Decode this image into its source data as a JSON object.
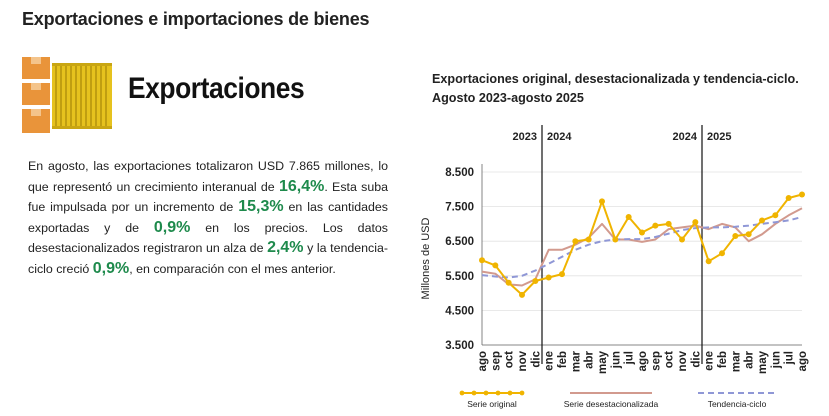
{
  "section_title": "Exportaciones e importaciones de bienes",
  "heading": "Exportaciones",
  "paragraph": {
    "p1": "En agosto, las exportaciones totalizaron USD 7.865 millones, lo que representó un crecimiento interanual de ",
    "h1": "16,4%",
    "p2": ". Esta suba fue impulsada por un incremento de ",
    "h2": "15,3%",
    "p3": " en las cantidades exportadas y de ",
    "h3": "0,9%",
    "p4": " en los precios. Los datos desestacionalizados registraron un alza de ",
    "h4": "2,4%",
    "p5": " y la tendencia-ciclo creció ",
    "h5": "0,9%",
    "p6": ", en comparación con el mes anterior."
  },
  "colors": {
    "highlight": "#1e8a4c",
    "serie_original": "#f0b400",
    "serie_desestacionalizada": "#d29a8e",
    "tendencia_ciclo": "#8f97d6",
    "icon_orange": "#e9943a",
    "icon_yellow": "#e6c21e"
  },
  "icon": {
    "name": "shipping-containers-icon"
  },
  "chart_data": {
    "type": "line",
    "title": "Exportaciones original, desestacionalizada y tendencia-ciclo. Agosto 2023-agosto 2025",
    "ylabel": "Millones de USD",
    "ylim": [
      3500,
      8500
    ],
    "yticks": [
      3500,
      4500,
      5500,
      6500,
      7500,
      8500
    ],
    "ytick_labels": [
      "3.500",
      "4.500",
      "5.500",
      "6.500",
      "7.500",
      "8.500"
    ],
    "categories": [
      "ago",
      "sep",
      "oct",
      "nov",
      "dic",
      "ene",
      "feb",
      "mar",
      "abr",
      "may",
      "jun",
      "jul",
      "ago",
      "sep",
      "oct",
      "nov",
      "dic",
      "ene",
      "feb",
      "mar",
      "abr",
      "may",
      "jun",
      "jul",
      "ago"
    ],
    "year_dividers": [
      {
        "after_index": 4,
        "left_label": "2023",
        "right_label": "2024"
      },
      {
        "after_index": 16,
        "left_label": "2024",
        "right_label": "2025"
      }
    ],
    "series": [
      {
        "name": "Serie original",
        "style": "line-markers",
        "values": [
          5950,
          5800,
          5300,
          4950,
          5350,
          5450,
          5550,
          6500,
          6550,
          7650,
          6550,
          7200,
          6750,
          6950,
          7000,
          6550,
          7050,
          5920,
          6150,
          6650,
          6700,
          7100,
          7250,
          7750,
          7850
        ]
      },
      {
        "name": "Serie desestacionalizada",
        "style": "solid",
        "values": [
          5620,
          5560,
          5250,
          5220,
          5400,
          6250,
          6250,
          6400,
          6600,
          7000,
          6550,
          6550,
          6480,
          6550,
          6850,
          6900,
          6950,
          6850,
          7000,
          6900,
          6500,
          6700,
          7000,
          7250,
          7450
        ]
      },
      {
        "name": "Tendencia-ciclo",
        "style": "dashed",
        "values": [
          5520,
          5480,
          5450,
          5500,
          5650,
          5850,
          6050,
          6250,
          6400,
          6500,
          6550,
          6560,
          6560,
          6620,
          6720,
          6820,
          6880,
          6900,
          6900,
          6920,
          6950,
          7000,
          7050,
          7100,
          7200
        ]
      }
    ]
  }
}
